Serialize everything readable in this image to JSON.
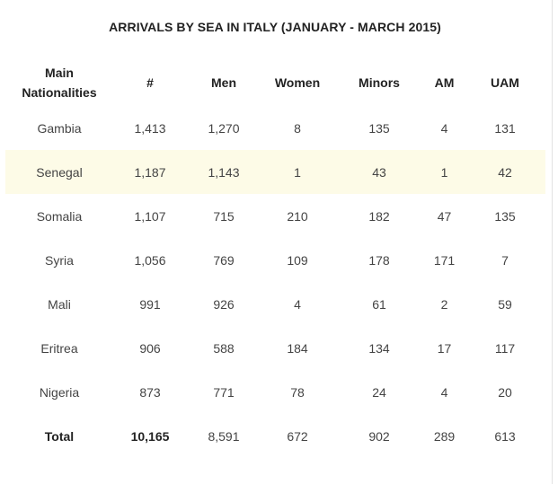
{
  "title": "ARRIVALS BY SEA IN ITALY (JANUARY - MARCH 2015)",
  "columns": {
    "nationality_line1": "Main",
    "nationality_line2": "Nationalities",
    "count": "#",
    "men": "Men",
    "women": "Women",
    "minors": "Minors",
    "am": "AM",
    "uam": "UAM"
  },
  "rows": [
    [
      "Gambia",
      "1,413",
      "1,270",
      "8",
      "135",
      "4",
      "131"
    ],
    [
      "Senegal",
      "1,187",
      "1,143",
      "1",
      "43",
      "1",
      "42"
    ],
    [
      "Somalia",
      "1,107",
      "715",
      "210",
      "182",
      "47",
      "135"
    ],
    [
      "Syria",
      "1,056",
      "769",
      "109",
      "178",
      "171",
      "7"
    ],
    [
      "Mali",
      "991",
      "926",
      "4",
      "61",
      "2",
      "59"
    ],
    [
      "Eritrea",
      "906",
      "588",
      "184",
      "134",
      "17",
      "117"
    ],
    [
      "Nigeria",
      "873",
      "771",
      "78",
      "24",
      "4",
      "20"
    ]
  ],
  "total": [
    "Total",
    "10,165",
    "8,591",
    "672",
    "902",
    "289",
    "613"
  ],
  "colors": {
    "highlight_row": "#fdfbe7",
    "text": "#444444",
    "heading": "#222222"
  }
}
